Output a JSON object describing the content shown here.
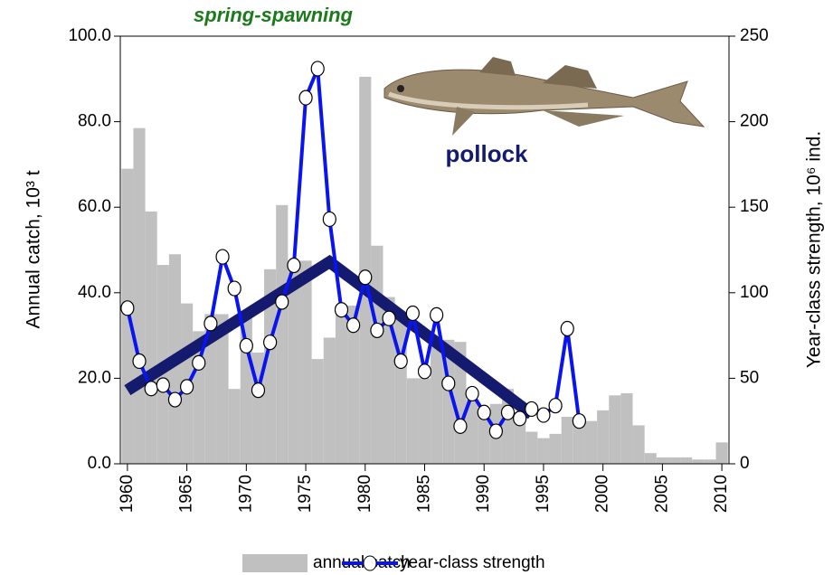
{
  "chart_data": {
    "type": "combo",
    "title": "spring-spawning",
    "annotation": "pollock",
    "y_label": "Annual catch, 10³ t",
    "y2_label": "Year-class strength, 10⁶ ind.",
    "legend": "bottom",
    "grid": false,
    "x": [
      1960,
      1961,
      1962,
      1963,
      1964,
      1965,
      1966,
      1967,
      1968,
      1969,
      1970,
      1971,
      1972,
      1973,
      1974,
      1975,
      1976,
      1977,
      1978,
      1979,
      1980,
      1981,
      1982,
      1983,
      1984,
      1985,
      1986,
      1987,
      1988,
      1989,
      1990,
      1991,
      1992,
      1993,
      1994,
      1995,
      1996,
      1997,
      1998,
      1999,
      2000,
      2001,
      2002,
      2003,
      2004,
      2005,
      2006,
      2007,
      2008,
      2009,
      2010
    ],
    "xlim": [
      1959.4,
      2010.6
    ],
    "xticks": [
      1960,
      1965,
      1970,
      1975,
      1980,
      1985,
      1990,
      1995,
      2000,
      2005,
      2010
    ],
    "ylim": [
      0,
      100
    ],
    "yticks": [
      {
        "value": 0,
        "label": "0.0"
      },
      {
        "value": 20,
        "label": "20.0"
      },
      {
        "value": 40,
        "label": "40.0"
      },
      {
        "value": 60,
        "label": "60.0"
      },
      {
        "value": 80,
        "label": "80.0"
      },
      {
        "value": 100,
        "label": "100.0"
      }
    ],
    "y2lim": [
      0,
      250
    ],
    "y2ticks": [
      0,
      50,
      100,
      150,
      200,
      250
    ],
    "series": [
      {
        "name": "annual catch",
        "type": "bar",
        "color": "#c0c0c0",
        "values": [
          69,
          78.5,
          59,
          46.5,
          49,
          37.5,
          31,
          35,
          35,
          17.5,
          35,
          26,
          45.5,
          60.5,
          47.5,
          47.5,
          24.5,
          29.5,
          37,
          37,
          90.5,
          51,
          39,
          35,
          20,
          20,
          29,
          29,
          28.5,
          15,
          12.5,
          14,
          17.5,
          12,
          7.5,
          6,
          7,
          11,
          11,
          10,
          12.5,
          16,
          16.5,
          9,
          2.5,
          1.5,
          1.5,
          1.5,
          1,
          1,
          5
        ]
      },
      {
        "name": "year-class strength",
        "type": "line",
        "axis": "y2",
        "color": "#0a14f0",
        "values": [
          91,
          60,
          44,
          46,
          37.5,
          45,
          59,
          82,
          121,
          102.5,
          69,
          43,
          71,
          94.6,
          116,
          214,
          231,
          143,
          90,
          81,
          109,
          78,
          85,
          60,
          88,
          54,
          87,
          47,
          22,
          41,
          30,
          19,
          30,
          26.5,
          32,
          28.5,
          34,
          79,
          25,
          null,
          null,
          null,
          null,
          null,
          null,
          null,
          null,
          null,
          null,
          null,
          null
        ]
      }
    ],
    "trend": {
      "type": "line",
      "axis": "y2",
      "color": "#141a6e",
      "x": [
        1960,
        1977,
        1994
      ],
      "values": [
        43,
        118,
        29
      ]
    }
  }
}
